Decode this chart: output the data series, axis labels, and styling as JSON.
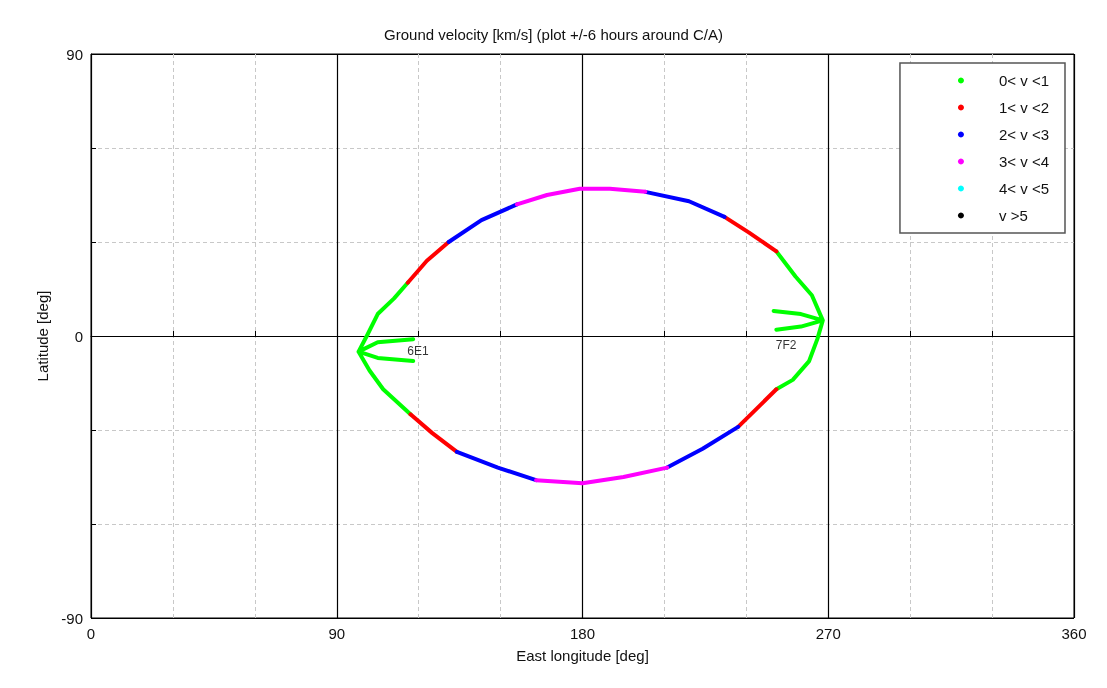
{
  "chart_data": {
    "type": "line",
    "title": "Ground velocity [km/s] (plot +/-6 hours around C/A)",
    "xlabel": "East longitude [deg]",
    "ylabel": "Latitude [deg]",
    "xlim": [
      0,
      360
    ],
    "xticks": [
      0,
      {
        "value": 30,
        "label": null
      },
      {
        "value": 60,
        "label": null
      },
      90,
      {
        "value": 120,
        "label": null
      },
      {
        "value": 150,
        "label": null
      },
      180,
      {
        "value": 210,
        "label": null
      },
      {
        "value": 240,
        "label": null
      },
      270,
      {
        "value": 300,
        "label": null
      },
      {
        "value": 330,
        "label": null
      },
      360
    ],
    "ylim": [
      -90,
      90
    ],
    "yticks": [
      -90,
      {
        "value": -60,
        "label": null
      },
      {
        "value": -30,
        "label": null
      },
      0,
      {
        "value": 30,
        "label": null
      },
      {
        "value": 60,
        "label": null
      },
      90
    ],
    "grid": true,
    "legend": "top right",
    "marker": "none",
    "line_style": "solid",
    "annotations": [
      {
        "text": "6E1",
        "x": 118,
        "y": -1
      },
      {
        "text": "7F2",
        "x": 253,
        "y": 1
      }
    ],
    "series": [
      {
        "name": "0< v <1",
        "color": "#00ff00",
        "x": [
          117,
          107,
          102,
          98,
          101,
          105,
          111,
          116,
          null,
          98,
          105,
          118,
          null,
          98,
          105,
          118,
          null,
          251,
          258,
          264,
          268,
          266,
          263,
          257,
          251,
          null,
          268,
          260,
          250,
          null,
          268,
          260,
          251
        ],
        "values": [
          -25,
          -17,
          -11,
          -5,
          0,
          7,
          12,
          17,
          null,
          -5,
          -2,
          -1,
          null,
          -5,
          -7,
          -8,
          null,
          27,
          19,
          13,
          5,
          -1,
          -8,
          -14,
          -17,
          null,
          5,
          7,
          8,
          null,
          5,
          3,
          2
        ]
      },
      {
        "name": "1< v <2",
        "color": "#ff0000",
        "x": [
          116,
          123,
          131,
          null,
          232,
          241,
          251,
          null,
          251,
          244,
          237,
          null,
          134,
          125,
          117
        ],
        "values": [
          17,
          24,
          30,
          null,
          38,
          33,
          27,
          null,
          -17,
          -23,
          -29,
          null,
          -37,
          -31,
          -25
        ]
      },
      {
        "name": "2< v <3",
        "color": "#0000ff",
        "x": [
          131,
          143,
          156,
          null,
          203,
          219,
          232,
          null,
          237,
          224,
          211,
          null,
          163,
          149,
          134
        ],
        "values": [
          30,
          37,
          42,
          null,
          46,
          43,
          38,
          null,
          -29,
          -36,
          -42,
          null,
          -46,
          -42,
          -37
        ]
      },
      {
        "name": "3< v <4",
        "color": "#ff00ff",
        "x": [
          156,
          167,
          179,
          190,
          203,
          null,
          211,
          195,
          180,
          163
        ],
        "values": [
          42,
          45,
          47,
          47,
          46,
          null,
          -42,
          -45,
          -47,
          -46
        ]
      },
      {
        "name": "4< v <5",
        "color": "#00ffff"
      },
      {
        "name": "v >5",
        "color": "#000000"
      }
    ]
  }
}
